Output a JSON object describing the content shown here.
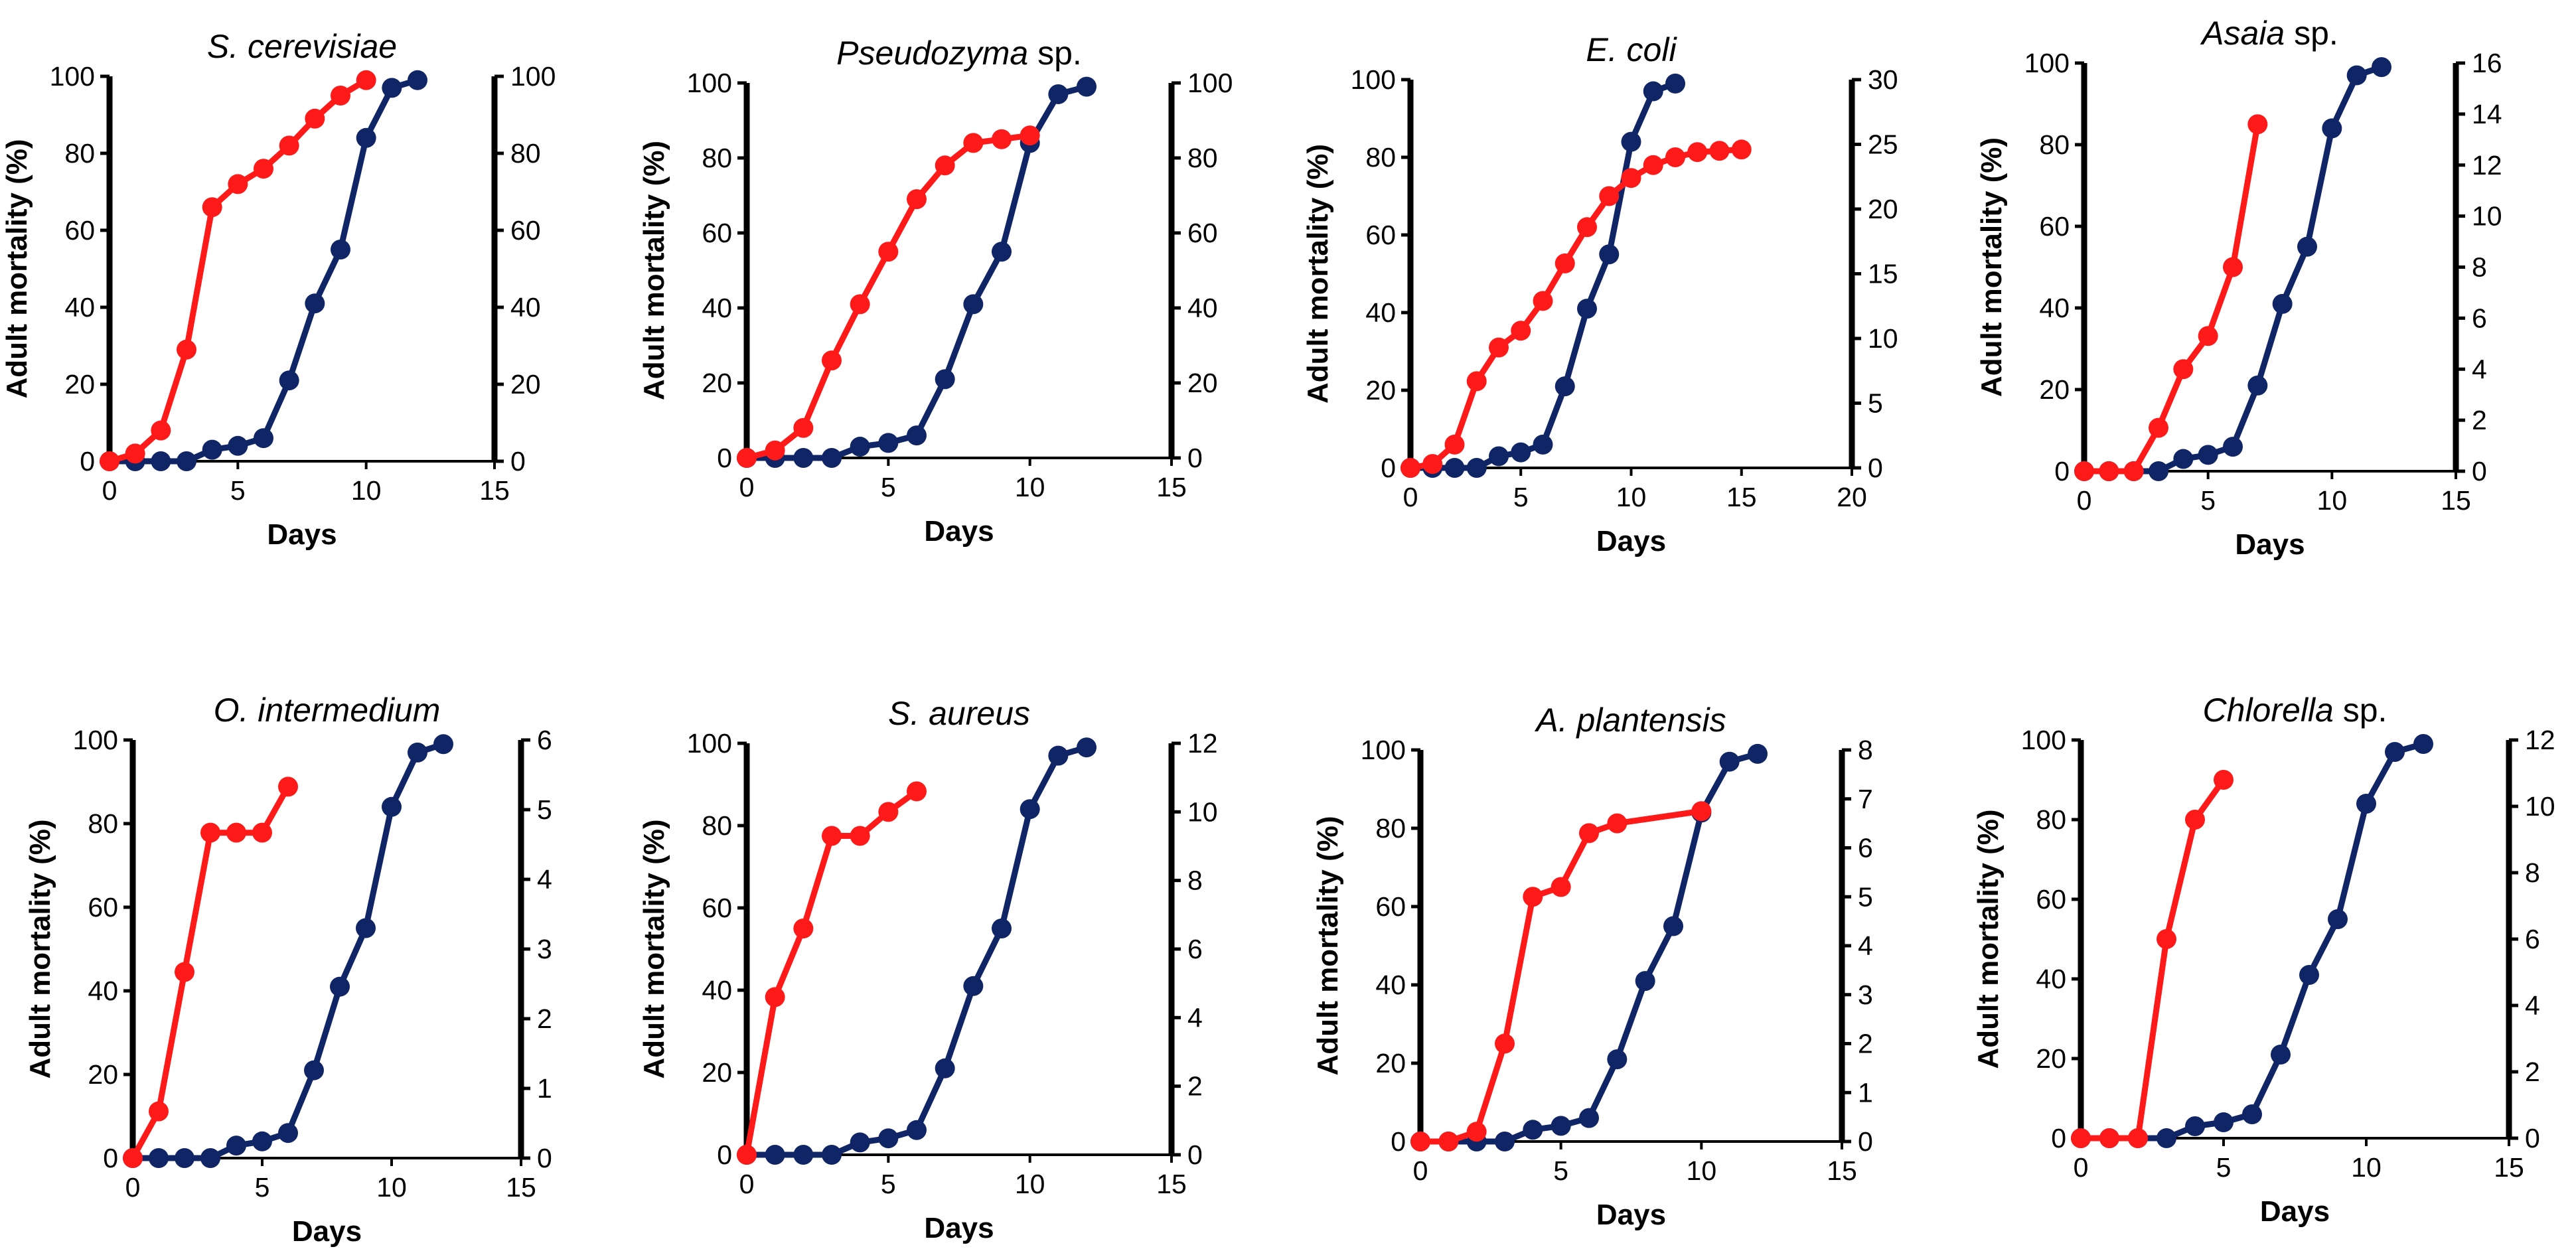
{
  "colors": {
    "red_series": "#ff1a1a",
    "blue_series": "#102566",
    "axis": "#000000"
  },
  "chart_data": [
    {
      "type": "line",
      "title_italic": "S. cerevisiae",
      "title_rest": "",
      "xlabel": "Days",
      "ylabel": "Adult mortality (%)",
      "xlim": [
        0,
        15
      ],
      "xticks": [
        "0",
        "5",
        "10",
        "15"
      ],
      "ylim": [
        0,
        100
      ],
      "yticks": [
        "0",
        "20",
        "40",
        "60",
        "80",
        "100"
      ],
      "y2lim": [
        0,
        100
      ],
      "y2ticks": [
        "0",
        "20",
        "40",
        "60",
        "80",
        "100"
      ],
      "series": [
        {
          "name": "red",
          "color": "#ff1a1a",
          "axis": "right",
          "x": [
            0,
            1,
            2,
            3,
            4,
            5,
            6,
            7,
            8,
            9,
            10
          ],
          "y": [
            0,
            2,
            8,
            29,
            66,
            72,
            76,
            82,
            89,
            95,
            99
          ]
        },
        {
          "name": "blue",
          "color": "#102566",
          "axis": "left",
          "x": [
            0,
            1,
            2,
            3,
            4,
            5,
            6,
            7,
            8,
            9,
            10,
            11,
            12
          ],
          "y": [
            0,
            0,
            0,
            0,
            3,
            4,
            6,
            21,
            41,
            55,
            84,
            97,
            99
          ]
        }
      ]
    },
    {
      "type": "line",
      "title_italic": "Pseudozyma",
      "title_rest": " sp.",
      "xlabel": "Days",
      "ylabel": "Adult mortality (%)",
      "xlim": [
        0,
        15
      ],
      "xticks": [
        "0",
        "5",
        "10",
        "15"
      ],
      "ylim": [
        0,
        100
      ],
      "yticks": [
        "0",
        "20",
        "40",
        "60",
        "80",
        "100"
      ],
      "y2lim": [
        0,
        100
      ],
      "y2ticks": [
        "0",
        "20",
        "40",
        "60",
        "80",
        "100"
      ],
      "series": [
        {
          "name": "red",
          "color": "#ff1a1a",
          "axis": "right",
          "x": [
            0,
            1,
            2,
            3,
            4,
            5,
            6,
            7,
            8,
            9,
            10
          ],
          "y": [
            0,
            2,
            8,
            26,
            41,
            55,
            69,
            78,
            84,
            85,
            86
          ]
        },
        {
          "name": "blue",
          "color": "#102566",
          "axis": "left",
          "x": [
            0,
            1,
            2,
            3,
            4,
            5,
            6,
            7,
            8,
            9,
            10,
            11,
            12
          ],
          "y": [
            0,
            0,
            0,
            0,
            3,
            4,
            6,
            21,
            41,
            55,
            84,
            97,
            99
          ]
        }
      ]
    },
    {
      "type": "line",
      "title_italic": "E. coli",
      "title_rest": "",
      "xlabel": "Days",
      "ylabel": "Adult mortality  (%)",
      "xlim": [
        0,
        20
      ],
      "xticks": [
        "0",
        "5",
        "10",
        "15",
        "20"
      ],
      "ylim": [
        0,
        100
      ],
      "yticks": [
        "0",
        "20",
        "40",
        "60",
        "80",
        "100"
      ],
      "y2lim": [
        0,
        30
      ],
      "y2ticks": [
        "0",
        "5",
        "10",
        "15",
        "20",
        "25",
        "30"
      ],
      "series": [
        {
          "name": "red",
          "color": "#ff1a1a",
          "axis": "right",
          "x": [
            0,
            1,
            2,
            3,
            4,
            5,
            6,
            7,
            8,
            9,
            10,
            11,
            12,
            13,
            14,
            15
          ],
          "y": [
            0,
            0.3,
            1.8,
            6.7,
            9.3,
            10.6,
            12.9,
            15.8,
            18.6,
            21,
            22.4,
            23.4,
            24,
            24.4,
            24.5,
            24.6
          ]
        },
        {
          "name": "blue",
          "color": "#102566",
          "axis": "left",
          "x": [
            0,
            1,
            2,
            3,
            4,
            5,
            6,
            7,
            8,
            9,
            10,
            11,
            12
          ],
          "y": [
            0,
            0,
            0,
            0,
            3,
            4,
            6,
            21,
            41,
            55,
            84,
            97,
            99
          ]
        }
      ]
    },
    {
      "type": "line",
      "title_italic": "Asaia",
      "title_rest": " sp.",
      "xlabel": "Days",
      "ylabel": "Adult mortality (%)",
      "xlim": [
        0,
        15
      ],
      "xticks": [
        "0",
        "5",
        "10",
        "15"
      ],
      "ylim": [
        0,
        100
      ],
      "yticks": [
        "0",
        "20",
        "40",
        "60",
        "80",
        "100"
      ],
      "y2lim": [
        0,
        16
      ],
      "y2ticks": [
        "0",
        "2",
        "4",
        "6",
        "8",
        "10",
        "12",
        "14",
        "16"
      ],
      "series": [
        {
          "name": "red",
          "color": "#ff1a1a",
          "axis": "right",
          "x": [
            0,
            1,
            2,
            3,
            4,
            5,
            6,
            7
          ],
          "y": [
            0,
            0,
            0,
            1.7,
            4,
            5.3,
            8,
            13.6
          ]
        },
        {
          "name": "blue",
          "color": "#102566",
          "axis": "left",
          "x": [
            0,
            1,
            2,
            3,
            4,
            5,
            6,
            7,
            8,
            9,
            10,
            11,
            12
          ],
          "y": [
            0,
            0,
            0,
            0,
            3,
            4,
            6,
            21,
            41,
            55,
            84,
            97,
            99
          ]
        }
      ]
    },
    {
      "type": "line",
      "title_italic": "O. intermedium",
      "title_rest": "",
      "xlabel": "Days",
      "ylabel": "Adult mortality  (%)",
      "xlim": [
        0,
        15
      ],
      "xticks": [
        "0",
        "5",
        "10",
        "15"
      ],
      "ylim": [
        0,
        100
      ],
      "yticks": [
        "0",
        "20",
        "40",
        "60",
        "80",
        "100"
      ],
      "y2lim": [
        0,
        6
      ],
      "y2ticks": [
        "0",
        "1",
        "2",
        "3",
        "4",
        "5",
        "6"
      ],
      "series": [
        {
          "name": "red",
          "color": "#ff1a1a",
          "axis": "right",
          "x": [
            0,
            1,
            2,
            3,
            4,
            5,
            6
          ],
          "y": [
            0,
            0.67,
            2.67,
            4.67,
            4.67,
            4.67,
            5.33
          ]
        },
        {
          "name": "blue",
          "color": "#102566",
          "axis": "left",
          "x": [
            0,
            1,
            2,
            3,
            4,
            5,
            6,
            7,
            8,
            9,
            10,
            11,
            12
          ],
          "y": [
            0,
            0,
            0,
            0,
            3,
            4,
            6,
            21,
            41,
            55,
            84,
            97,
            99
          ]
        }
      ]
    },
    {
      "type": "line",
      "title_italic": "S. aureus",
      "title_rest": "",
      "xlabel": "Days",
      "ylabel": "Adult mortality (%)",
      "xlim": [
        0,
        15
      ],
      "xticks": [
        "0",
        "5",
        "10",
        "15"
      ],
      "ylim": [
        0,
        100
      ],
      "yticks": [
        "0",
        "20",
        "40",
        "60",
        "80",
        "100"
      ],
      "y2lim": [
        0,
        12
      ],
      "y2ticks": [
        "0",
        "2",
        "4",
        "6",
        "8",
        "10",
        "12"
      ],
      "series": [
        {
          "name": "red",
          "color": "#ff1a1a",
          "axis": "right",
          "x": [
            0,
            1,
            2,
            3,
            4,
            5,
            6
          ],
          "y": [
            0,
            4.6,
            6.6,
            9.3,
            9.3,
            10,
            10.6
          ]
        },
        {
          "name": "blue",
          "color": "#102566",
          "axis": "left",
          "x": [
            0,
            1,
            2,
            3,
            4,
            5,
            6,
            7,
            8,
            9,
            10,
            11,
            12
          ],
          "y": [
            0,
            0,
            0,
            0,
            3,
            4,
            6,
            21,
            41,
            55,
            84,
            97,
            99
          ]
        }
      ]
    },
    {
      "type": "line",
      "title_italic": "A. plantensis",
      "title_rest": "",
      "xlabel": "Days",
      "ylabel": "Adult mortality  (%)",
      "xlim": [
        0,
        15
      ],
      "xticks": [
        "0",
        "5",
        "10",
        "15"
      ],
      "ylim": [
        0,
        100
      ],
      "yticks": [
        "0",
        "20",
        "40",
        "60",
        "80",
        "100"
      ],
      "y2lim": [
        0,
        8
      ],
      "y2ticks": [
        "0",
        "1",
        "2",
        "3",
        "4",
        "5",
        "6",
        "7",
        "8"
      ],
      "series": [
        {
          "name": "red",
          "color": "#ff1a1a",
          "axis": "right",
          "x": [
            0,
            1,
            2,
            3,
            4,
            5,
            6,
            7,
            10
          ],
          "y": [
            0,
            0,
            0.2,
            2,
            5,
            5.2,
            6.3,
            6.5,
            6.75
          ]
        },
        {
          "name": "blue",
          "color": "#102566",
          "axis": "left",
          "x": [
            0,
            1,
            2,
            3,
            4,
            5,
            6,
            7,
            8,
            9,
            10,
            11,
            12
          ],
          "y": [
            0,
            0,
            0,
            0,
            3,
            4,
            6,
            21,
            41,
            55,
            84,
            97,
            99
          ]
        }
      ]
    },
    {
      "type": "line",
      "title_italic": "Chlorella",
      "title_rest": " sp.",
      "xlabel": "Days",
      "ylabel": "Adult mortality (%)",
      "xlim": [
        0,
        15
      ],
      "xticks": [
        "0",
        "5",
        "10",
        "15"
      ],
      "ylim": [
        0,
        100
      ],
      "yticks": [
        "0",
        "20",
        "40",
        "60",
        "80",
        "100"
      ],
      "y2lim": [
        0,
        12
      ],
      "y2ticks": [
        "0",
        "2",
        "4",
        "6",
        "8",
        "10",
        "12"
      ],
      "series": [
        {
          "name": "red",
          "color": "#ff1a1a",
          "axis": "right",
          "x": [
            0,
            1,
            2,
            3,
            4,
            5
          ],
          "y": [
            0,
            0,
            0,
            6,
            9.6,
            10.8
          ]
        },
        {
          "name": "blue",
          "color": "#102566",
          "axis": "left",
          "x": [
            0,
            1,
            2,
            3,
            4,
            5,
            6,
            7,
            8,
            9,
            10,
            11,
            12
          ],
          "y": [
            0,
            0,
            0,
            0,
            3,
            4,
            6,
            21,
            41,
            55,
            84,
            97,
            99
          ]
        }
      ]
    }
  ]
}
